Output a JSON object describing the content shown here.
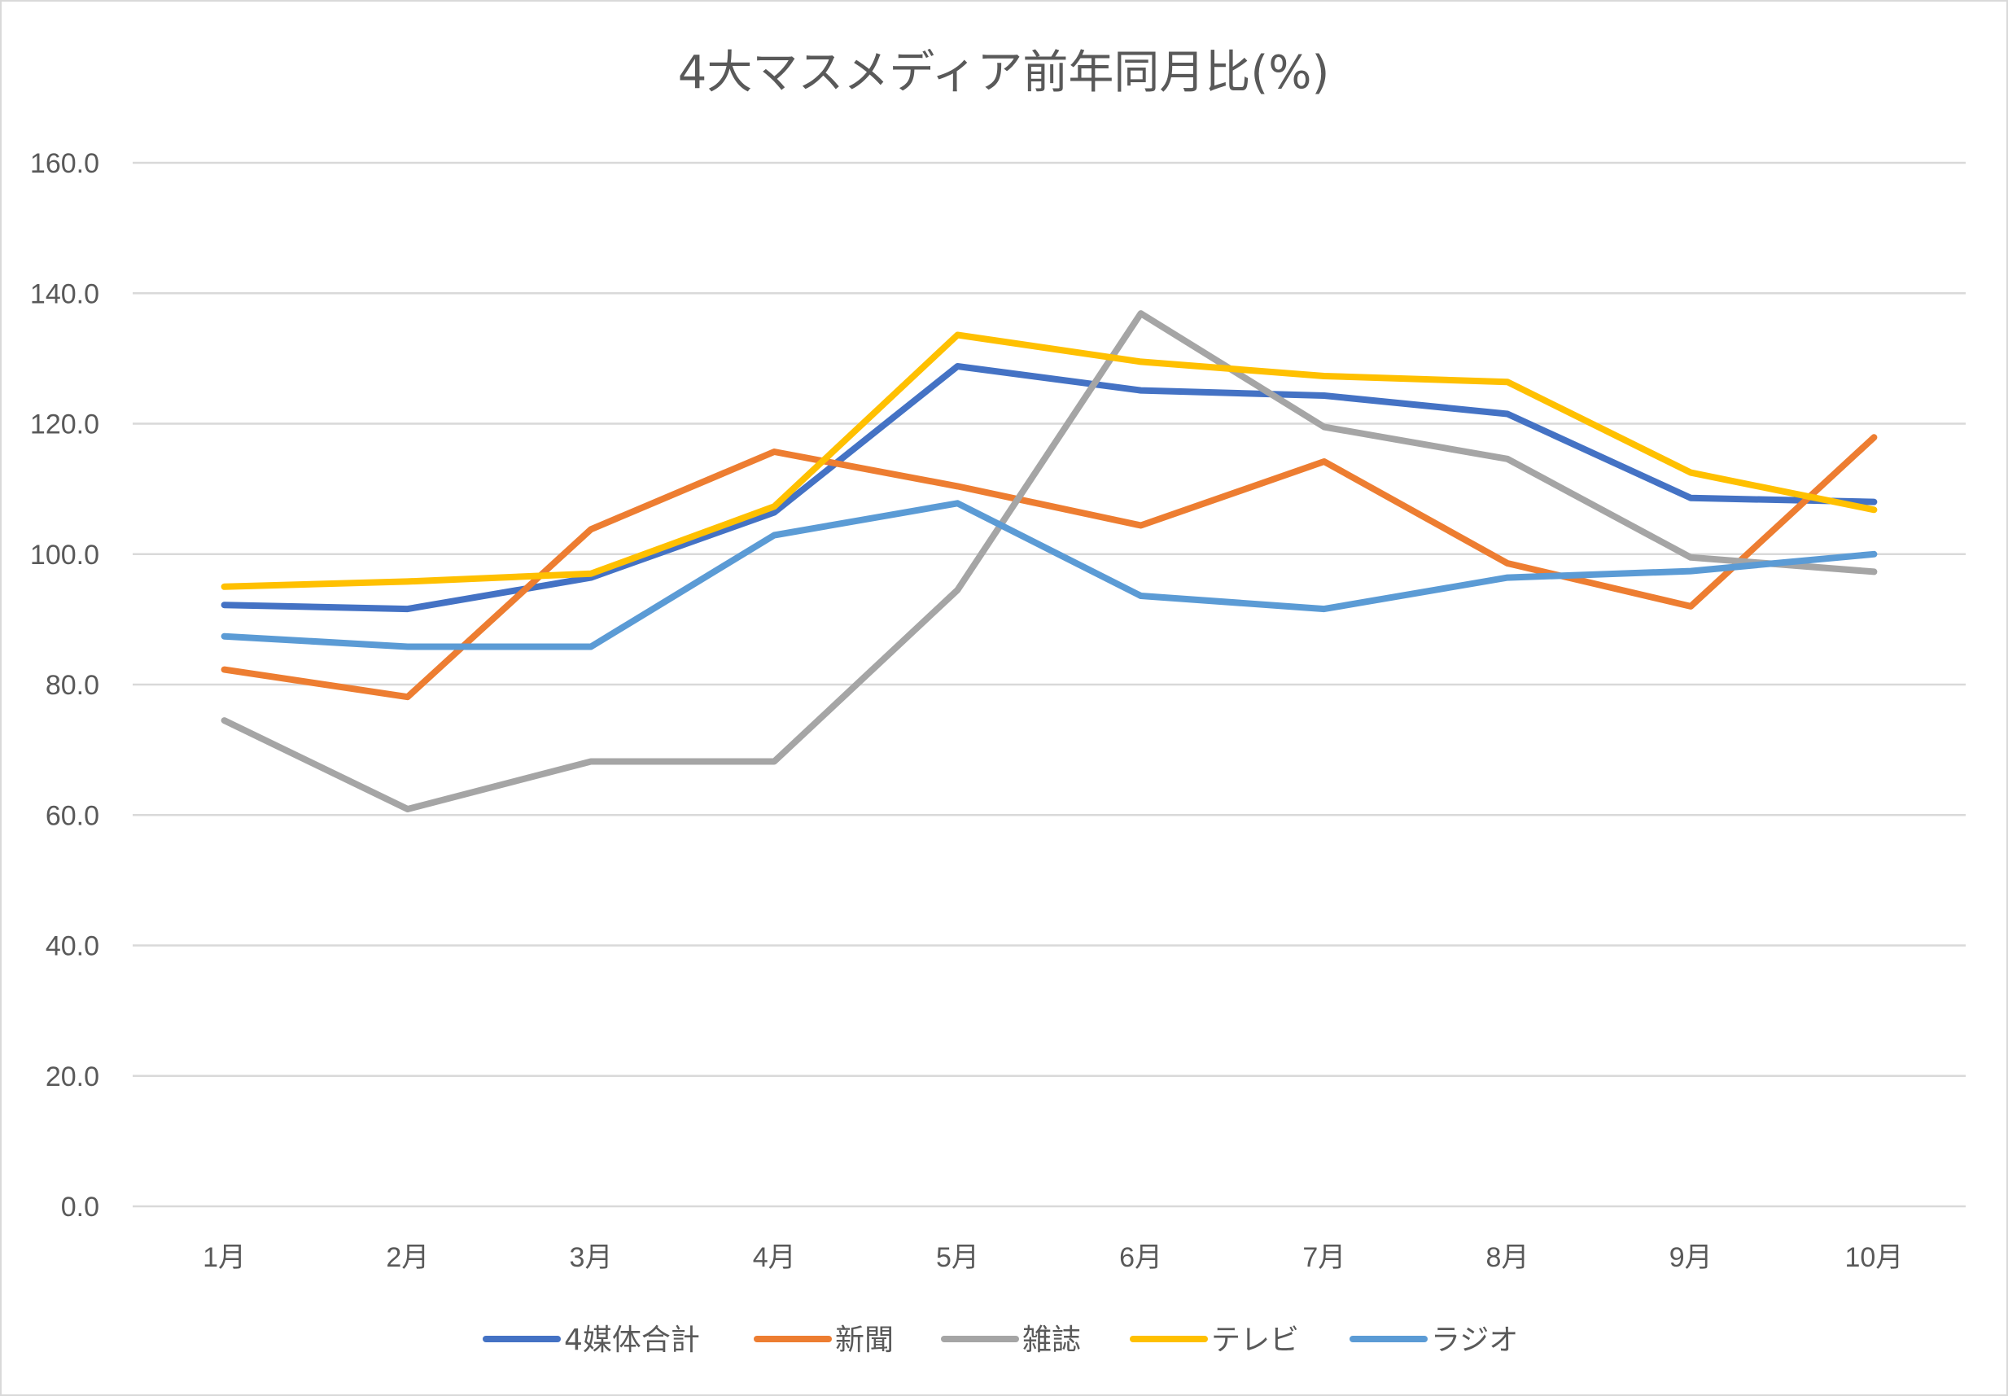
{
  "chart_data": {
    "type": "line",
    "title": "4大マスメディア前年同月比(%)",
    "xlabel": "",
    "ylabel": "",
    "categories": [
      "1月",
      "2月",
      "3月",
      "4月",
      "5月",
      "6月",
      "7月",
      "8月",
      "9月",
      "10月"
    ],
    "ylim": [
      0,
      160
    ],
    "yticks": [
      "0.0",
      "20.0",
      "40.0",
      "60.0",
      "80.0",
      "100.0",
      "120.0",
      "140.0",
      "160.0"
    ],
    "grid": true,
    "legend_position": "bottom",
    "series": [
      {
        "name": "4媒体合計",
        "color": "#4472c4",
        "values": [
          92.2,
          91.6,
          96.4,
          106.4,
          128.8,
          125.1,
          124.3,
          121.5,
          108.6,
          108.0
        ]
      },
      {
        "name": "新聞",
        "color": "#ed7d31",
        "values": [
          82.3,
          78.1,
          103.8,
          115.7,
          110.4,
          104.4,
          114.2,
          98.6,
          92.0,
          117.9
        ]
      },
      {
        "name": "雑誌",
        "color": "#a5a5a5",
        "values": [
          74.5,
          60.9,
          68.2,
          68.2,
          94.5,
          136.9,
          119.5,
          114.6,
          99.5,
          97.3
        ]
      },
      {
        "name": "テレビ",
        "color": "#ffc000",
        "values": [
          95.0,
          95.8,
          97.0,
          107.3,
          133.6,
          129.5,
          127.3,
          126.4,
          112.5,
          106.8
        ]
      },
      {
        "name": "ラジオ",
        "color": "#5b9bd5",
        "values": [
          87.4,
          85.8,
          85.8,
          102.9,
          107.8,
          93.6,
          91.6,
          96.4,
          97.4,
          100.0
        ]
      }
    ]
  }
}
